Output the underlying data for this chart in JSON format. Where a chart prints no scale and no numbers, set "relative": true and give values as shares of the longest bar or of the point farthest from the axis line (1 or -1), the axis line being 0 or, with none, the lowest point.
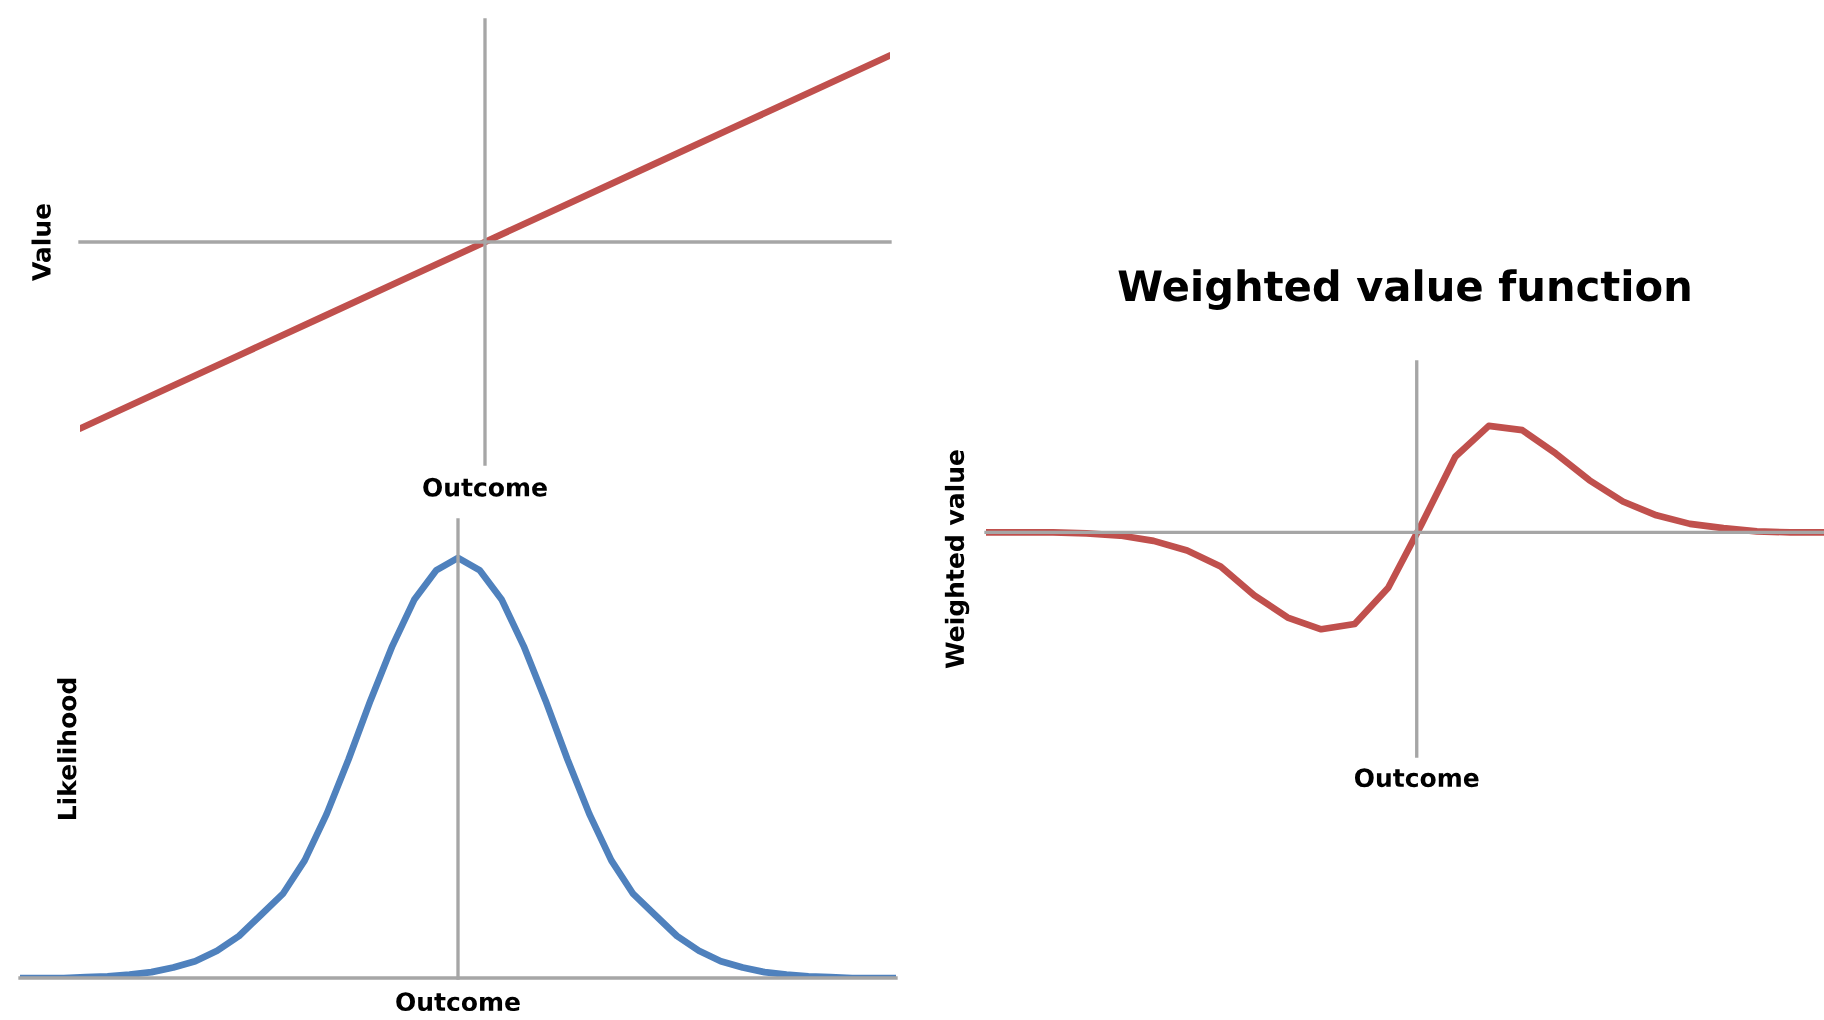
{
  "chart_data": [
    {
      "type": "line",
      "relative": true,
      "xlabel": "Outcome",
      "ylabel": "Value",
      "categories": [
        null,
        null,
        null,
        null,
        null,
        null,
        null,
        null,
        null,
        null,
        null
      ],
      "series": [
        {
          "color": "#c0504d",
          "values": [
            -1,
            -0.8,
            -0.6,
            -0.4,
            -0.2,
            0,
            0.2,
            0.4,
            0.6,
            0.8,
            1
          ]
        }
      ]
    },
    {
      "type": "line",
      "relative": true,
      "xlabel": "Outcome",
      "ylabel": "Likelihood",
      "categories": [
        null,
        null,
        null,
        null,
        null,
        null,
        null,
        null,
        null,
        null,
        null,
        null,
        null,
        null,
        null,
        null,
        null,
        null,
        null,
        null,
        null,
        null,
        null,
        null,
        null,
        null,
        null,
        null,
        null,
        null,
        null,
        null,
        null,
        null,
        null,
        null,
        null,
        null,
        null,
        null,
        null
      ],
      "series": [
        {
          "color": "#4f81bd",
          "values": [
            0,
            0,
            0,
            0.002,
            0.004,
            0.008,
            0.014,
            0.025,
            0.04,
            0.065,
            0.1,
            0.15,
            0.2,
            0.28,
            0.39,
            0.52,
            0.66,
            0.79,
            0.9,
            0.97,
            1,
            0.97,
            0.9,
            0.79,
            0.66,
            0.52,
            0.39,
            0.28,
            0.2,
            0.15,
            0.1,
            0.065,
            0.04,
            0.025,
            0.014,
            0.008,
            0.004,
            0.002,
            0,
            0,
            0
          ]
        }
      ]
    },
    {
      "type": "line",
      "relative": true,
      "title": "Weighted value function",
      "xlabel": "Outcome",
      "ylabel": "Weighted value",
      "categories": [
        null,
        null,
        null,
        null,
        null,
        null,
        null,
        null,
        null,
        null,
        null,
        null,
        null,
        null,
        null,
        null,
        null,
        null,
        null,
        null,
        null,
        null,
        null,
        null,
        null,
        null
      ],
      "series": [
        {
          "color": "#c0504d",
          "values": [
            0,
            0,
            0,
            -0.01,
            -0.03,
            -0.08,
            -0.17,
            -0.32,
            -0.59,
            -0.8,
            -0.91,
            -0.86,
            -0.52,
            0.08,
            0.71,
            1,
            0.96,
            0.74,
            0.49,
            0.29,
            0.16,
            0.08,
            0.04,
            0.01,
            0,
            0
          ]
        }
      ]
    }
  ]
}
